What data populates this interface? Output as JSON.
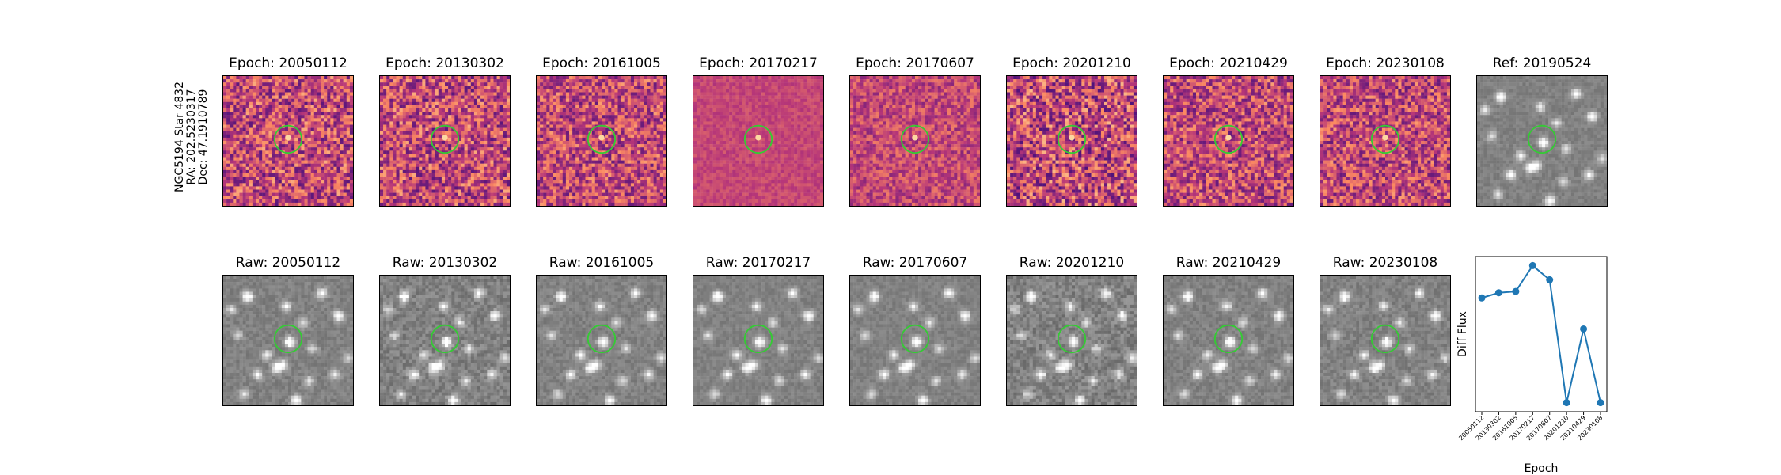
{
  "star_info": {
    "name": "NGC5194 Star 4832",
    "ra": "RA: 202.5230317",
    "dec": "Dec: 47.1910789"
  },
  "diff_panels": [
    {
      "title": "Epoch: 20050112"
    },
    {
      "title": "Epoch: 20130302"
    },
    {
      "title": "Epoch: 20161005"
    },
    {
      "title": "Epoch: 20170217"
    },
    {
      "title": "Epoch: 20170607"
    },
    {
      "title": "Epoch: 20201210"
    },
    {
      "title": "Epoch: 20210429"
    },
    {
      "title": "Epoch: 20230108"
    }
  ],
  "ref_panel": {
    "title": "Ref: 20190524"
  },
  "raw_panels": [
    {
      "title": "Raw: 20050112"
    },
    {
      "title": "Raw: 20130302"
    },
    {
      "title": "Raw: 20161005"
    },
    {
      "title": "Raw: 20170217"
    },
    {
      "title": "Raw: 20170607"
    },
    {
      "title": "Raw: 20201210"
    },
    {
      "title": "Raw: 20210429"
    },
    {
      "title": "Raw: 20230108"
    }
  ],
  "colors": {
    "marker_circle": "#33cc33",
    "line": "#1f77b4"
  },
  "chart_data": {
    "type": "line",
    "title": "",
    "xlabel": "Epoch",
    "ylabel": "Diff Flux",
    "categories": [
      "20050112",
      "20130302",
      "20161005",
      "20170217",
      "20170607",
      "20201210",
      "20210429",
      "20230108"
    ],
    "values": [
      0.66,
      0.7,
      0.71,
      0.91,
      0.8,
      -0.15,
      0.42,
      -0.15
    ],
    "ylim": [
      -0.22,
      0.98
    ],
    "grid": false,
    "legend": "none"
  }
}
